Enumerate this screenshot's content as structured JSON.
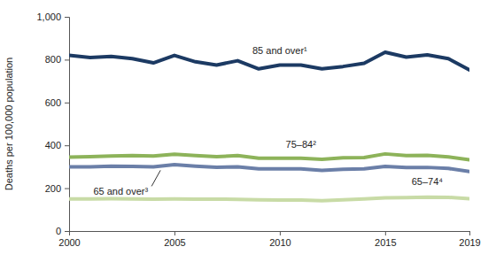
{
  "chart_data": {
    "type": "line",
    "y_label": "Deaths per 100,000 population",
    "x": [
      2000,
      2001,
      2002,
      2003,
      2004,
      2005,
      2006,
      2007,
      2008,
      2009,
      2010,
      2011,
      2012,
      2013,
      2014,
      2015,
      2016,
      2017,
      2018,
      2019
    ],
    "xlim": [
      2000,
      2019
    ],
    "xticks": [
      2000,
      2005,
      2010,
      2015,
      2019
    ],
    "ylim": [
      0,
      1000
    ],
    "yticks": [
      0,
      200,
      400,
      600,
      800,
      {
        "value": 1000,
        "label": "1,000"
      }
    ],
    "grid": false,
    "series": [
      {
        "name": "85 and over¹",
        "color": "#1c3a63",
        "values": [
          820,
          810,
          815,
          805,
          785,
          820,
          790,
          775,
          795,
          757,
          775,
          775,
          757,
          768,
          783,
          835,
          812,
          822,
          805,
          752
        ]
      },
      {
        "name": "75–84²",
        "color": "#8db35a",
        "values": [
          345,
          347,
          350,
          352,
          350,
          358,
          352,
          347,
          352,
          340,
          340,
          340,
          335,
          342,
          343,
          360,
          352,
          353,
          346,
          333
        ]
      },
      {
        "name": "65 and over³",
        "color": "#6b7fa8",
        "values": [
          300,
          300,
          303,
          302,
          300,
          310,
          303,
          298,
          300,
          290,
          290,
          290,
          283,
          288,
          290,
          302,
          296,
          297,
          292,
          278
        ]
      },
      {
        "name": "65–74⁴",
        "color": "#c8dba6",
        "values": [
          150,
          150,
          151,
          150,
          149,
          150,
          149,
          149,
          148,
          146,
          145,
          145,
          142,
          146,
          150,
          155,
          156,
          158,
          157,
          151
        ]
      }
    ]
  }
}
